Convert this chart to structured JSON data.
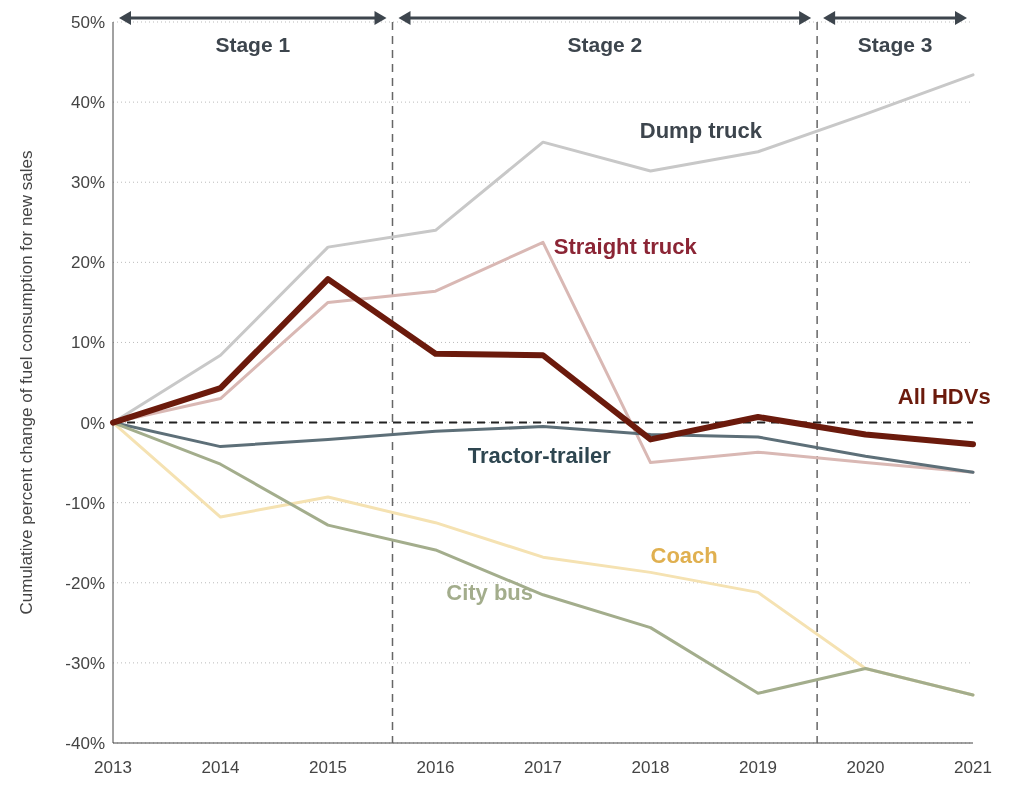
{
  "chart_data": {
    "type": "line",
    "ylabel": "Cumulative percent change of fuel consumption for new sales",
    "x": [
      2013,
      2014,
      2015,
      2016,
      2017,
      2018,
      2019,
      2020,
      2021
    ],
    "xlim": [
      2013,
      2021
    ],
    "xticks": [
      2013,
      2014,
      2015,
      2016,
      2017,
      2018,
      2019,
      2020,
      2021
    ],
    "ylim": [
      -40,
      50
    ],
    "yticks": [
      {
        "value": -40,
        "label": "-40%"
      },
      {
        "value": -30,
        "label": "-30%"
      },
      {
        "value": -20,
        "label": "-20%"
      },
      {
        "value": -10,
        "label": "-10%"
      },
      {
        "value": 0,
        "label": "0%"
      },
      {
        "value": 10,
        "label": "10%"
      },
      {
        "value": 20,
        "label": "20%"
      },
      {
        "value": 30,
        "label": "30%"
      },
      {
        "value": 40,
        "label": "40%"
      },
      {
        "value": 50,
        "label": "50%"
      }
    ],
    "grid": "y",
    "marker": "none",
    "line_style": "solid",
    "series": [
      {
        "name": "Dump truck",
        "color": "#c8c8c8",
        "values": [
          0,
          8.4,
          21.9,
          24,
          35,
          31.4,
          33.8,
          38.5,
          43.4
        ]
      },
      {
        "name": "Straight truck",
        "color": "#d9b8b4",
        "values": [
          0,
          3,
          15,
          16.4,
          22.5,
          -5,
          -3.7,
          -5,
          -6.2
        ]
      },
      {
        "name": "Tractor-trailer",
        "color": "#5d6f78",
        "values": [
          0,
          -3,
          -2.1,
          -1.1,
          -0.5,
          -1.5,
          -1.8,
          -4.2,
          -6.2
        ]
      },
      {
        "name": "Coach",
        "color": "#f5e2b2",
        "values": [
          0,
          -11.8,
          -9.3,
          -12.5,
          -16.8,
          -18.7,
          -21.2,
          -30.7,
          -34
        ]
      },
      {
        "name": "City bus",
        "color": "#a3ad8c",
        "values": [
          0,
          -5.2,
          -12.8,
          -15.9,
          -21.5,
          -25.6,
          -33.8,
          -30.7,
          -34
        ]
      },
      {
        "name": "All HDVs",
        "color": "#6b1a0c",
        "values": [
          0,
          4.3,
          17.9,
          8.6,
          8.4,
          -2.1,
          0.7,
          -1.5,
          -2.7
        ]
      }
    ],
    "ref_lines": [
      {
        "axis": "y",
        "value": 0,
        "color": "#222222",
        "line_style": "dashed"
      },
      {
        "axis": "x",
        "value": 2015.6,
        "color": "#666666",
        "line_style": "dashed"
      },
      {
        "axis": "x",
        "value": 2019.55,
        "color": "#666666",
        "line_style": "dashed"
      }
    ],
    "annotations": [
      "Stage 1",
      "Stage 2",
      "Stage 3"
    ]
  }
}
